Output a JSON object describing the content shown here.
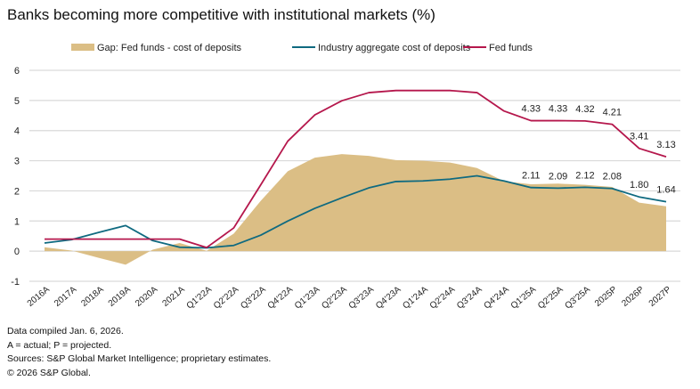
{
  "title": "Banks becoming more competitive with institutional markets (%)",
  "notes": [
    "Data compiled Jan. 6, 2026.",
    "A = actual; P = projected.",
    "Sources: S&P Global Market Intelligence; proprietary estimates.",
    "© 2026 S&P Global."
  ],
  "chart_data": {
    "type": "line",
    "title": "Banks becoming more competitive with institutional markets (%)",
    "xlabel": "",
    "ylabel": "",
    "ylim": [
      -1,
      6
    ],
    "yticks": [
      -1,
      0,
      1,
      2,
      3,
      4,
      5,
      6
    ],
    "grid": true,
    "legend": "top",
    "categories": [
      "2016A",
      "2017A",
      "2018A",
      "2019A",
      "2020A",
      "2021A",
      "Q1'22A",
      "Q2'22A",
      "Q3'22A",
      "Q4'22A",
      "Q1'23A",
      "Q2'23A",
      "Q3'23A",
      "Q4'23A",
      "Q1'24A",
      "Q2'24A",
      "Q3'24A",
      "Q4'24A",
      "Q1'25A",
      "Q2'25A",
      "Q3'25A",
      "2025P",
      "2026P",
      "2027P"
    ],
    "series": [
      {
        "name": "Gap: Fed funds - cost of deposits",
        "type": "area",
        "color": "#dbbe85",
        "values": [
          0.13,
          0.02,
          -0.22,
          -0.45,
          0.05,
          0.27,
          0.01,
          0.58,
          1.67,
          2.65,
          3.1,
          3.22,
          3.16,
          3.02,
          3.0,
          2.94,
          2.76,
          2.32,
          2.22,
          2.24,
          2.2,
          2.13,
          1.61,
          1.49
        ]
      },
      {
        "name": "Industry aggregate cost of deposits",
        "type": "line",
        "color": "#0f6a80",
        "values": [
          0.27,
          0.38,
          0.62,
          0.85,
          0.35,
          0.13,
          0.11,
          0.19,
          0.53,
          1.0,
          1.42,
          1.77,
          2.1,
          2.31,
          2.33,
          2.39,
          2.5,
          2.33,
          2.11,
          2.09,
          2.12,
          2.08,
          1.8,
          1.64
        ]
      },
      {
        "name": "Fed funds",
        "type": "line",
        "color": "#b5174c",
        "values": [
          0.4,
          0.4,
          0.4,
          0.4,
          0.4,
          0.4,
          0.12,
          0.77,
          2.2,
          3.65,
          4.52,
          4.99,
          5.26,
          5.33,
          5.33,
          5.33,
          5.26,
          4.65,
          4.33,
          4.33,
          4.32,
          4.21,
          3.41,
          3.13
        ]
      }
    ],
    "data_labels": {
      "Fed funds": {
        "Q1'25A": "4.33",
        "Q2'25A": "4.33",
        "Q3'25A": "4.32",
        "2025P": "4.21",
        "2026P": "3.41",
        "2027P": "3.13"
      },
      "Industry aggregate cost of deposits": {
        "Q1'25A": "2.11",
        "Q2'25A": "2.09",
        "Q3'25A": "2.12",
        "2025P": "2.08",
        "2026P": "1.80",
        "2027P": "1.64"
      }
    }
  }
}
